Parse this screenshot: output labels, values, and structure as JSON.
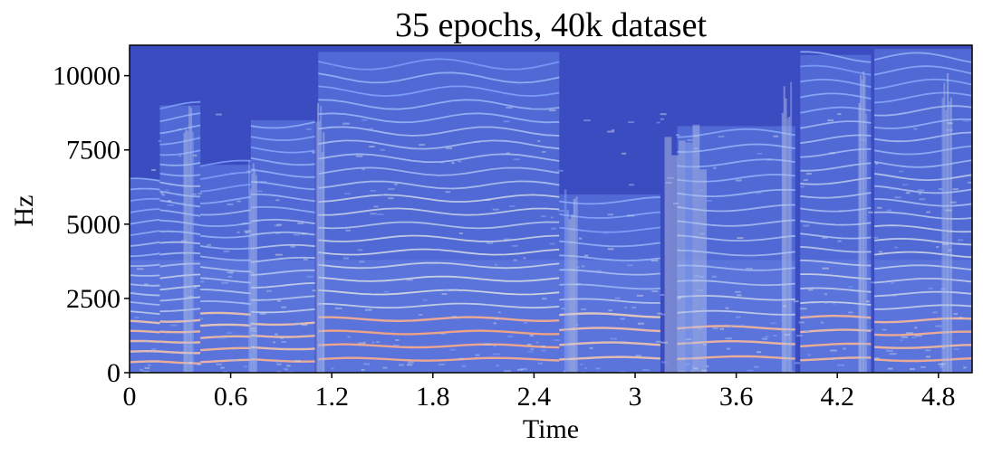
{
  "chart_data": {
    "type": "heatmap",
    "subtype": "spectrogram",
    "title": "35 epochs, 40k dataset",
    "xlabel": "Time",
    "ylabel": "Hz",
    "xlim": [
      0,
      5.0
    ],
    "ylim": [
      0,
      11025
    ],
    "x_ticks": [
      0,
      0.6,
      1.2,
      1.8,
      2.4,
      3,
      3.6,
      4.2,
      4.8
    ],
    "x_tick_labels": [
      "0",
      "0.6",
      "1.2",
      "1.8",
      "2.4",
      "3",
      "3.6",
      "4.2",
      "4.8"
    ],
    "y_ticks": [
      0,
      2500,
      5000,
      7500,
      10000
    ],
    "y_tick_labels": [
      "0",
      "2500",
      "5000",
      "7500",
      "10000"
    ],
    "colormap": "coolwarm",
    "colors": {
      "low": "#3b4cc0",
      "mid": "#dddddd",
      "high": "#b40426"
    },
    "voiced_segments": [
      {
        "start": 0.0,
        "end": 0.18,
        "f0": 160,
        "energy": 0.55,
        "top_hz": 6500
      },
      {
        "start": 0.18,
        "end": 0.42,
        "f0": 170,
        "energy": 0.6,
        "top_hz": 9000
      },
      {
        "start": 0.42,
        "end": 0.72,
        "f0": 185,
        "energy": 0.6,
        "top_hz": 7000
      },
      {
        "start": 0.72,
        "end": 1.1,
        "f0": 200,
        "energy": 0.65,
        "top_hz": 8500
      },
      {
        "start": 1.12,
        "end": 2.55,
        "f0": 215,
        "energy": 0.8,
        "top_hz": 10800
      },
      {
        "start": 2.55,
        "end": 3.15,
        "f0": 230,
        "energy": 0.55,
        "top_hz": 6000
      },
      {
        "start": 3.25,
        "end": 3.95,
        "f0": 240,
        "energy": 0.6,
        "top_hz": 8300
      },
      {
        "start": 3.98,
        "end": 4.4,
        "f0": 220,
        "energy": 0.7,
        "top_hz": 10700
      },
      {
        "start": 4.42,
        "end": 5.0,
        "f0": 210,
        "energy": 0.75,
        "top_hz": 10900
      }
    ],
    "broadband_bursts": [
      {
        "time": 0.35,
        "width": 0.06,
        "top_hz": 9500
      },
      {
        "time": 0.73,
        "width": 0.05,
        "top_hz": 7500
      },
      {
        "time": 1.13,
        "width": 0.05,
        "top_hz": 9200
      },
      {
        "time": 2.62,
        "width": 0.08,
        "top_hz": 6200
      },
      {
        "time": 3.3,
        "width": 0.25,
        "top_hz": 8500
      },
      {
        "time": 3.9,
        "width": 0.06,
        "top_hz": 10200
      },
      {
        "time": 4.35,
        "width": 0.05,
        "top_hz": 10500
      },
      {
        "time": 4.85,
        "width": 0.06,
        "top_hz": 10900
      }
    ],
    "grid": false,
    "legend": "none"
  }
}
